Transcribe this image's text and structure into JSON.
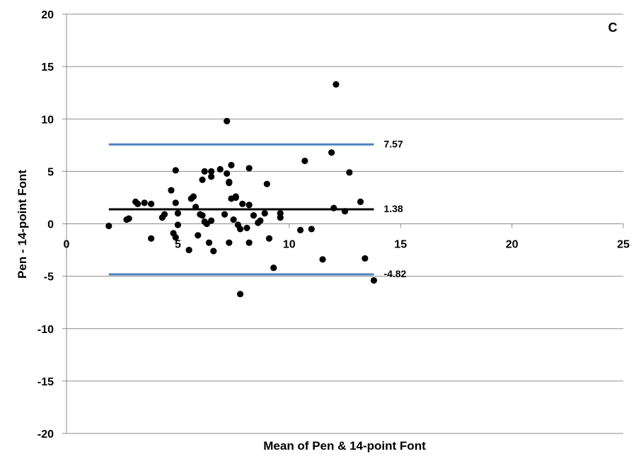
{
  "chart_data": {
    "type": "scatter",
    "panel_label": "C",
    "xlabel": "Mean of Pen & 14-point Font",
    "ylabel": "Pen - 14-point Font",
    "xlim": [
      0,
      25
    ],
    "ylim": [
      -20,
      20
    ],
    "x_ticks": [
      0,
      5,
      10,
      15,
      20,
      25
    ],
    "y_ticks": [
      -20,
      -15,
      -10,
      -5,
      0,
      5,
      10,
      15,
      20
    ],
    "grid": "horizontal",
    "reference_lines": [
      {
        "value": 7.57,
        "label": "7.57",
        "x_range": [
          1.9,
          13.8
        ],
        "color": "#4f81bd"
      },
      {
        "value": 1.38,
        "label": "1.38",
        "x_range": [
          1.9,
          13.8
        ],
        "color": "#000000"
      },
      {
        "value": -4.82,
        "label": "-4.82",
        "x_range": [
          1.9,
          13.8
        ],
        "color": "#4f81bd"
      }
    ],
    "points": [
      [
        1.9,
        -0.2
      ],
      [
        2.7,
        0.4
      ],
      [
        2.8,
        0.5
      ],
      [
        3.1,
        2.1
      ],
      [
        3.2,
        1.9
      ],
      [
        3.5,
        2.0
      ],
      [
        3.8,
        1.9
      ],
      [
        3.8,
        -1.4
      ],
      [
        4.3,
        0.6
      ],
      [
        4.4,
        0.9
      ],
      [
        4.7,
        3.2
      ],
      [
        4.8,
        -0.9
      ],
      [
        4.9,
        -1.3
      ],
      [
        4.9,
        5.1
      ],
      [
        4.9,
        2.0
      ],
      [
        5.0,
        1.0
      ],
      [
        5.0,
        -0.1
      ],
      [
        5.5,
        -2.5
      ],
      [
        5.6,
        2.4
      ],
      [
        5.7,
        2.6
      ],
      [
        5.8,
        1.6
      ],
      [
        5.9,
        -1.1
      ],
      [
        6.0,
        0.9
      ],
      [
        6.1,
        4.2
      ],
      [
        6.1,
        0.8
      ],
      [
        6.2,
        5.0
      ],
      [
        6.2,
        0.2
      ],
      [
        6.3,
        0.0
      ],
      [
        6.4,
        -1.8
      ],
      [
        6.5,
        5.0
      ],
      [
        6.5,
        4.5
      ],
      [
        6.5,
        0.3
      ],
      [
        6.6,
        -2.6
      ],
      [
        6.9,
        5.2
      ],
      [
        7.1,
        0.9
      ],
      [
        7.2,
        9.8
      ],
      [
        7.2,
        4.8
      ],
      [
        7.3,
        3.9
      ],
      [
        7.3,
        4.0
      ],
      [
        7.3,
        -1.8
      ],
      [
        7.4,
        2.4
      ],
      [
        7.4,
        5.6
      ],
      [
        7.5,
        0.4
      ],
      [
        7.6,
        2.5
      ],
      [
        7.6,
        2.6
      ],
      [
        7.7,
        -0.1
      ],
      [
        7.8,
        -0.5
      ],
      [
        7.8,
        -6.7
      ],
      [
        7.9,
        1.9
      ],
      [
        8.1,
        -0.4
      ],
      [
        8.2,
        1.8
      ],
      [
        8.2,
        -1.8
      ],
      [
        8.2,
        5.3
      ],
      [
        8.4,
        0.8
      ],
      [
        8.6,
        0.1
      ],
      [
        8.7,
        0.3
      ],
      [
        8.9,
        1.0
      ],
      [
        9.0,
        3.8
      ],
      [
        9.1,
        -1.4
      ],
      [
        9.3,
        -4.2
      ],
      [
        9.6,
        1.0
      ],
      [
        9.6,
        0.6
      ],
      [
        10.5,
        -0.6
      ],
      [
        10.7,
        6.0
      ],
      [
        11.0,
        -0.5
      ],
      [
        11.5,
        -3.4
      ],
      [
        11.9,
        6.8
      ],
      [
        12.0,
        1.5
      ],
      [
        12.1,
        13.3
      ],
      [
        12.5,
        1.2
      ],
      [
        12.7,
        4.9
      ],
      [
        13.2,
        2.1
      ],
      [
        13.4,
        -3.3
      ],
      [
        13.8,
        -5.4
      ]
    ]
  }
}
